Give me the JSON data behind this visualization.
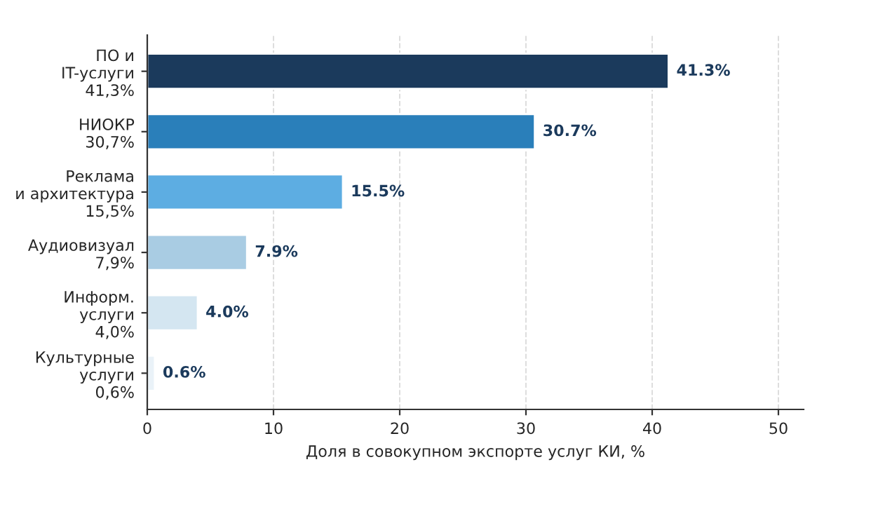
{
  "chart_data": {
    "type": "bar",
    "orientation": "horizontal",
    "xlabel": "Доля в совокупном экспорте услуг КИ, %",
    "categories": [
      "ПО и\nIT-услуги\n41,3%",
      "НИОКР\n30,7%",
      "Реклама\nи архитектура\n15,5%",
      "Аудиовизуал\n7,9%",
      "Информ.\nуслуги\n4,0%",
      "Культурные\nуслуги\n0,6%"
    ],
    "values": [
      41.3,
      30.7,
      15.5,
      7.9,
      4.0,
      0.6
    ],
    "colors": [
      "#1b3a5c",
      "#2a7fba",
      "#5dade2",
      "#a9cce3",
      "#d4e6f1",
      "#eaf2f8"
    ],
    "value_labels": [
      "41.3%",
      "30.7%",
      "15.5%",
      "7.9%",
      "4.0%",
      "0.6%"
    ],
    "xlim": [
      0,
      52
    ],
    "xticks": [
      0,
      10,
      20,
      30,
      40,
      50
    ],
    "grid": "x",
    "legend": false
  }
}
